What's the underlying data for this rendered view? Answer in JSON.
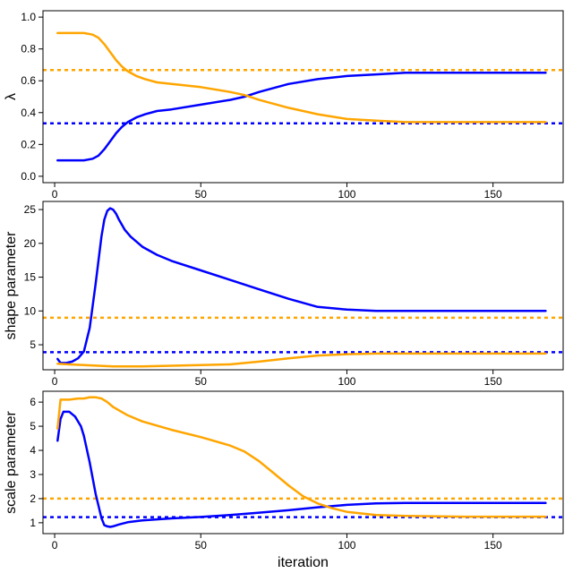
{
  "colors": {
    "series_a": "#0000ff",
    "series_b": "#ffa500",
    "axis": "#000000"
  },
  "chart_data": [
    {
      "type": "line",
      "ylabel": "λ",
      "xlim": [
        -4,
        174
      ],
      "ylim": [
        -0.04,
        1.04
      ],
      "xticks": [
        0,
        50,
        100,
        150
      ],
      "yticks": [
        0.0,
        0.2,
        0.4,
        0.6,
        0.8,
        1.0
      ],
      "ytick_labels": [
        "0.0",
        "0.2",
        "0.4",
        "0.6",
        "0.8",
        "1.0"
      ],
      "series": [
        {
          "color": "#0000ff",
          "x": [
            1,
            5,
            10,
            13,
            15,
            17,
            19,
            21,
            23,
            25,
            28,
            31,
            35,
            40,
            50,
            60,
            65,
            70,
            80,
            90,
            100,
            110,
            120,
            130,
            140,
            150,
            160,
            168
          ],
          "y": [
            0.1,
            0.1,
            0.1,
            0.11,
            0.13,
            0.17,
            0.22,
            0.27,
            0.31,
            0.34,
            0.37,
            0.39,
            0.41,
            0.42,
            0.45,
            0.48,
            0.5,
            0.53,
            0.58,
            0.61,
            0.63,
            0.64,
            0.65,
            0.65,
            0.65,
            0.65,
            0.65,
            0.65
          ]
        },
        {
          "color": "#ffa500",
          "x": [
            1,
            5,
            10,
            13,
            15,
            17,
            19,
            21,
            23,
            25,
            28,
            31,
            35,
            40,
            50,
            60,
            65,
            70,
            80,
            90,
            100,
            110,
            120,
            130,
            140,
            150,
            160,
            168
          ],
          "y": [
            0.9,
            0.9,
            0.9,
            0.89,
            0.87,
            0.83,
            0.78,
            0.73,
            0.69,
            0.66,
            0.63,
            0.61,
            0.59,
            0.58,
            0.56,
            0.53,
            0.51,
            0.48,
            0.43,
            0.39,
            0.36,
            0.35,
            0.34,
            0.34,
            0.34,
            0.34,
            0.34,
            0.34
          ]
        }
      ],
      "hlines": [
        {
          "y": 0.667,
          "color": "#ffa500"
        },
        {
          "y": 0.333,
          "color": "#0000ff"
        }
      ]
    },
    {
      "type": "line",
      "ylabel": "shape parameter",
      "xlim": [
        -4,
        174
      ],
      "ylim": [
        1.3,
        26.2
      ],
      "xticks": [
        0,
        50,
        100,
        150
      ],
      "yticks": [
        5,
        10,
        15,
        20,
        25
      ],
      "ytick_labels": [
        "5",
        "10",
        "15",
        "20",
        "25"
      ],
      "series": [
        {
          "color": "#0000ff",
          "x": [
            1,
            2,
            4,
            6,
            8,
            10,
            12,
            14,
            16,
            17,
            18,
            19,
            20,
            21,
            22,
            24,
            26,
            30,
            35,
            40,
            50,
            60,
            70,
            80,
            90,
            100,
            110,
            120,
            130,
            140,
            150,
            160,
            168
          ],
          "y": [
            2.9,
            2.3,
            2.3,
            2.5,
            3.0,
            4.0,
            7.5,
            14.0,
            21.0,
            23.5,
            24.8,
            25.2,
            25.0,
            24.4,
            23.5,
            22.0,
            21.0,
            19.5,
            18.3,
            17.4,
            16.0,
            14.6,
            13.2,
            11.8,
            10.6,
            10.2,
            10.0,
            10.0,
            10.0,
            10.0,
            10.0,
            10.0,
            10.0
          ]
        },
        {
          "color": "#ffa500",
          "x": [
            1,
            5,
            10,
            20,
            30,
            40,
            50,
            60,
            70,
            80,
            90,
            100,
            110,
            120,
            140,
            160,
            168
          ],
          "y": [
            2.2,
            2.1,
            2.0,
            1.8,
            1.8,
            1.9,
            2.0,
            2.1,
            2.5,
            3.0,
            3.4,
            3.6,
            3.7,
            3.7,
            3.7,
            3.7,
            3.7
          ]
        }
      ],
      "hlines": [
        {
          "y": 9.0,
          "color": "#ffa500"
        },
        {
          "y": 3.9,
          "color": "#0000ff"
        }
      ]
    },
    {
      "type": "line",
      "ylabel": "scale parameter",
      "xlabel": "iteration",
      "xlim": [
        -4,
        174
      ],
      "ylim": [
        0.55,
        6.45
      ],
      "xticks": [
        0,
        50,
        100,
        150
      ],
      "xtick_labels": [
        "0",
        "50",
        "100",
        "150"
      ],
      "yticks": [
        1,
        2,
        3,
        4,
        5,
        6
      ],
      "ytick_labels": [
        "1",
        "2",
        "3",
        "4",
        "5",
        "6"
      ],
      "series": [
        {
          "color": "#0000ff",
          "x": [
            1,
            2,
            3,
            5,
            7,
            9,
            10,
            12,
            14,
            16,
            17,
            18,
            19,
            20,
            22,
            25,
            30,
            40,
            50,
            60,
            70,
            80,
            90,
            100,
            110,
            120,
            140,
            168
          ],
          "y": [
            4.4,
            5.3,
            5.6,
            5.6,
            5.4,
            5.0,
            4.6,
            3.5,
            2.2,
            1.2,
            0.9,
            0.85,
            0.83,
            0.85,
            0.93,
            1.02,
            1.1,
            1.18,
            1.24,
            1.32,
            1.42,
            1.52,
            1.64,
            1.74,
            1.8,
            1.82,
            1.82,
            1.82
          ]
        },
        {
          "color": "#ffa500",
          "x": [
            1,
            2,
            3,
            5,
            8,
            10,
            12,
            14,
            16,
            18,
            20,
            25,
            30,
            40,
            50,
            60,
            65,
            70,
            75,
            80,
            85,
            90,
            95,
            100,
            110,
            120,
            140,
            168
          ],
          "y": [
            4.9,
            6.1,
            6.1,
            6.1,
            6.15,
            6.15,
            6.2,
            6.2,
            6.15,
            6.0,
            5.8,
            5.45,
            5.2,
            4.85,
            4.55,
            4.2,
            3.95,
            3.55,
            3.05,
            2.55,
            2.1,
            1.8,
            1.6,
            1.45,
            1.32,
            1.28,
            1.25,
            1.25
          ]
        }
      ],
      "hlines": [
        {
          "y": 2.0,
          "color": "#ffa500"
        },
        {
          "y": 1.23,
          "color": "#0000ff"
        }
      ]
    }
  ]
}
